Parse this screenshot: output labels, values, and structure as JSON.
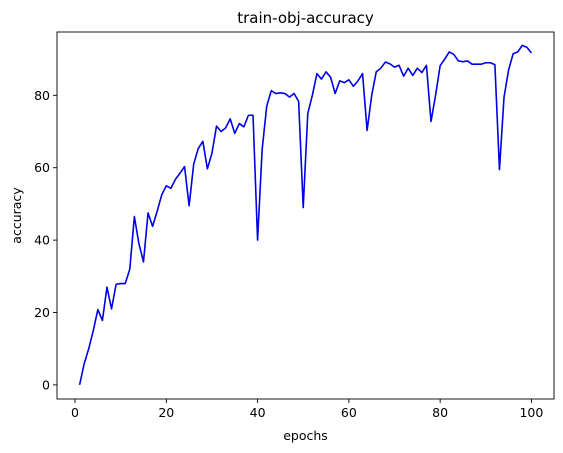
{
  "chart_data": {
    "type": "line",
    "title": "train-obj-accuracy",
    "xlabel": "epochs",
    "ylabel": "accuracy",
    "xlim": [
      -3.95,
      104.95
    ],
    "ylim": [
      -3.9,
      97.5
    ],
    "xticks": [
      0,
      20,
      40,
      60,
      80,
      100
    ],
    "yticks": [
      0,
      20,
      40,
      60,
      80
    ],
    "grid": false,
    "series": [
      {
        "color": "#0000e6",
        "x": [
          1,
          2,
          3,
          4,
          5,
          6,
          7,
          8,
          9,
          10,
          11,
          12,
          13,
          14,
          15,
          16,
          17,
          18,
          19,
          20,
          21,
          22,
          23,
          24,
          25,
          26,
          27,
          28,
          29,
          30,
          31,
          32,
          33,
          34,
          35,
          36,
          37,
          38,
          39,
          40,
          41,
          42,
          43,
          44,
          45,
          46,
          47,
          48,
          49,
          50,
          51,
          52,
          53,
          54,
          55,
          56,
          57,
          58,
          59,
          60,
          61,
          62,
          63,
          64,
          65,
          66,
          67,
          68,
          69,
          70,
          71,
          72,
          73,
          74,
          75,
          76,
          77,
          78,
          79,
          80,
          81,
          82,
          83,
          84,
          85,
          86,
          87,
          88,
          89,
          90,
          91,
          92,
          93,
          94,
          95,
          96,
          97,
          98,
          99,
          100
        ],
        "y": [
          0,
          5.8,
          10,
          15,
          20.8,
          17.8,
          27,
          21,
          27.8,
          28,
          28,
          32,
          46.5,
          39,
          34,
          47.5,
          43.8,
          48,
          52.5,
          55,
          54.3,
          56.8,
          58.5,
          60.3,
          49.5,
          61,
          65.3,
          67.3,
          59.7,
          64,
          71.5,
          70,
          71,
          73.5,
          69.5,
          72.2,
          71.3,
          74.5,
          74.5,
          40,
          65,
          77,
          81.3,
          80.5,
          80.7,
          80.5,
          79.5,
          80.5,
          78.3,
          49,
          75,
          80,
          86,
          84.5,
          86.5,
          85,
          80.5,
          84,
          83.5,
          84.3,
          82.5,
          84,
          86,
          70.3,
          80,
          86.5,
          87.5,
          89.2,
          88.7,
          87.8,
          88.3,
          85.3,
          87.5,
          85.5,
          87.5,
          86.3,
          88.3,
          72.8,
          80,
          88.2,
          90,
          92,
          91.3,
          89.5,
          89.3,
          89.5,
          88.6,
          88.6,
          88.6,
          89,
          89,
          88.5,
          59.5,
          79.5,
          87,
          91.5,
          92,
          93.8,
          93.3,
          91.7
        ]
      }
    ]
  }
}
